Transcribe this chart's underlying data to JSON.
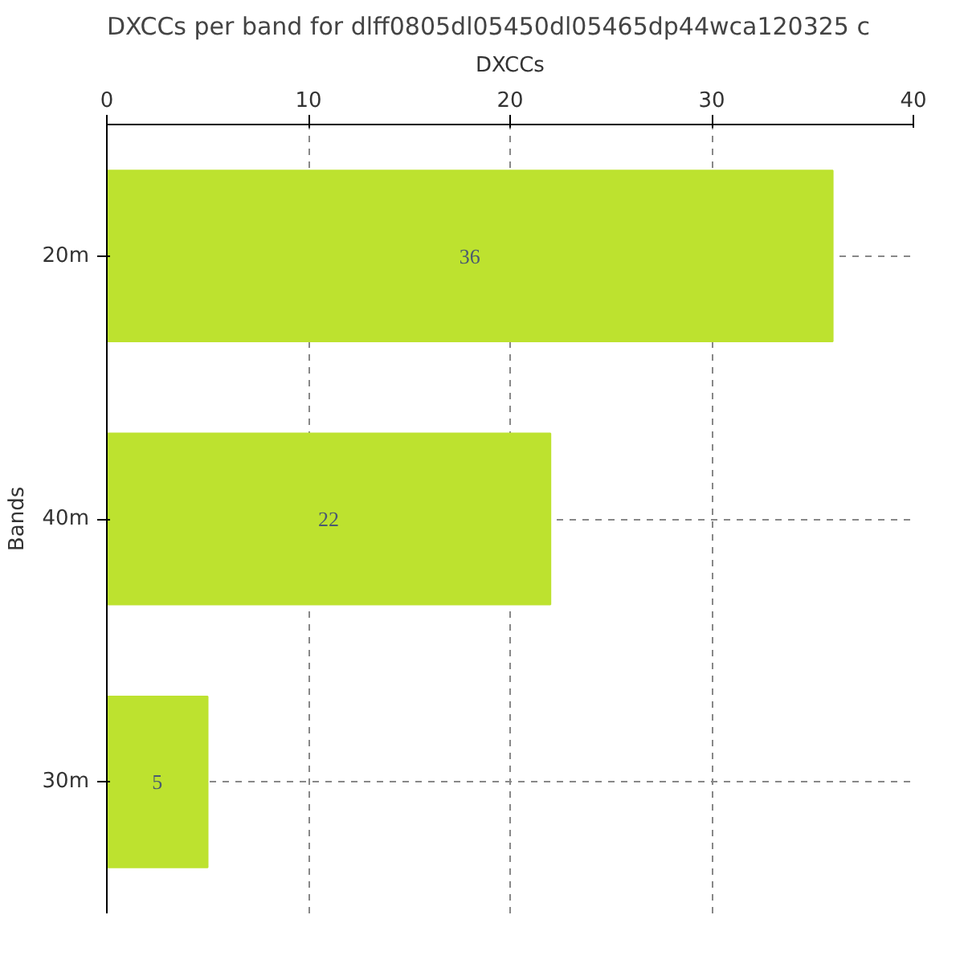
{
  "chart_data": {
    "type": "bar",
    "orientation": "horizontal",
    "title": "DXCCs per band for dlff0805dl05450dl05465dp44wca120325 c",
    "xlabel": "DXCCs",
    "ylabel": "Bands",
    "categories": [
      "20m",
      "40m",
      "30m"
    ],
    "values": [
      36,
      22,
      5
    ],
    "color": "#bde22f",
    "xlim": [
      0,
      40
    ],
    "xticks": [
      0,
      10,
      20,
      30,
      40
    ],
    "grid": true,
    "data_labels": true
  }
}
